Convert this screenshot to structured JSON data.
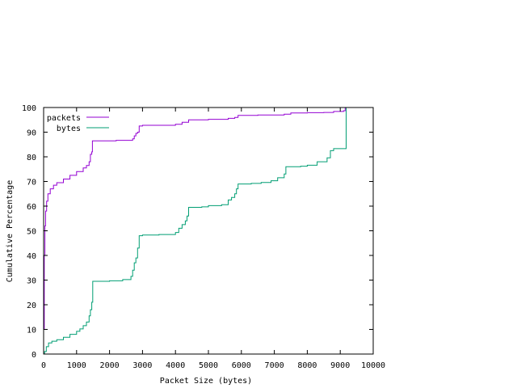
{
  "chart_data": {
    "type": "line",
    "title": "",
    "xlabel": "Packet Size (bytes)",
    "ylabel": "Cumulative Percentage",
    "xlim": [
      0,
      10000
    ],
    "ylim": [
      0,
      100
    ],
    "x_ticks": [
      "0",
      "1000",
      "2000",
      "3000",
      "4000",
      "5000",
      "6000",
      "7000",
      "8000",
      "9000",
      "10000"
    ],
    "y_ticks": [
      "0",
      "10",
      "20",
      "30",
      "40",
      "50",
      "60",
      "70",
      "80",
      "90",
      "100"
    ],
    "grid": false,
    "legend_position": "top-left",
    "series": [
      {
        "name": "packets",
        "color": "#9400d3",
        "points": [
          [
            0,
            10
          ],
          [
            20,
            40
          ],
          [
            40,
            52
          ],
          [
            60,
            58
          ],
          [
            90,
            62
          ],
          [
            130,
            65
          ],
          [
            200,
            67
          ],
          [
            300,
            68.5
          ],
          [
            400,
            69.5
          ],
          [
            600,
            71
          ],
          [
            800,
            72.5
          ],
          [
            1000,
            74
          ],
          [
            1200,
            75.5
          ],
          [
            1300,
            76.5
          ],
          [
            1380,
            78
          ],
          [
            1420,
            81
          ],
          [
            1460,
            82
          ],
          [
            1480,
            86.5
          ],
          [
            2200,
            86.7
          ],
          [
            2700,
            87.3
          ],
          [
            2750,
            88.5
          ],
          [
            2800,
            89.5
          ],
          [
            2850,
            90
          ],
          [
            2900,
            92.5
          ],
          [
            3000,
            92.8
          ],
          [
            4000,
            93.2
          ],
          [
            4200,
            94
          ],
          [
            4400,
            95
          ],
          [
            5000,
            95.2
          ],
          [
            5600,
            95.6
          ],
          [
            5800,
            96
          ],
          [
            5900,
            96.8
          ],
          [
            6500,
            97
          ],
          [
            7300,
            97.3
          ],
          [
            7500,
            97.8
          ],
          [
            8000,
            97.9
          ],
          [
            8500,
            98
          ],
          [
            8800,
            98.4
          ],
          [
            9100,
            98.7
          ],
          [
            9150,
            100
          ]
        ]
      },
      {
        "name": "bytes",
        "color": "#009e73",
        "points": [
          [
            0,
            0
          ],
          [
            30,
            1
          ],
          [
            80,
            3
          ],
          [
            150,
            4.5
          ],
          [
            250,
            5.2
          ],
          [
            400,
            5.8
          ],
          [
            600,
            6.8
          ],
          [
            800,
            8
          ],
          [
            1000,
            9.2
          ],
          [
            1100,
            10.2
          ],
          [
            1200,
            11.5
          ],
          [
            1300,
            13
          ],
          [
            1380,
            15.5
          ],
          [
            1420,
            18
          ],
          [
            1460,
            21
          ],
          [
            1490,
            29.5
          ],
          [
            2000,
            29.7
          ],
          [
            2400,
            30.2
          ],
          [
            2650,
            31.5
          ],
          [
            2700,
            34
          ],
          [
            2750,
            37
          ],
          [
            2800,
            39
          ],
          [
            2850,
            43
          ],
          [
            2900,
            48
          ],
          [
            3000,
            48.3
          ],
          [
            3500,
            48.5
          ],
          [
            4000,
            49.3
          ],
          [
            4100,
            51
          ],
          [
            4200,
            52.5
          ],
          [
            4300,
            54
          ],
          [
            4350,
            56
          ],
          [
            4400,
            59.5
          ],
          [
            4800,
            59.7
          ],
          [
            5000,
            60.2
          ],
          [
            5400,
            60.6
          ],
          [
            5600,
            62.5
          ],
          [
            5700,
            63.5
          ],
          [
            5800,
            65
          ],
          [
            5850,
            67
          ],
          [
            5900,
            69
          ],
          [
            6300,
            69.2
          ],
          [
            6600,
            69.6
          ],
          [
            6900,
            70.3
          ],
          [
            7100,
            71.5
          ],
          [
            7300,
            73
          ],
          [
            7350,
            76
          ],
          [
            7800,
            76.2
          ],
          [
            8000,
            76.6
          ],
          [
            8300,
            78
          ],
          [
            8600,
            79.6
          ],
          [
            8700,
            82.5
          ],
          [
            8800,
            83.3
          ],
          [
            9180,
            83.3
          ],
          [
            9180,
            100
          ]
        ]
      }
    ]
  }
}
